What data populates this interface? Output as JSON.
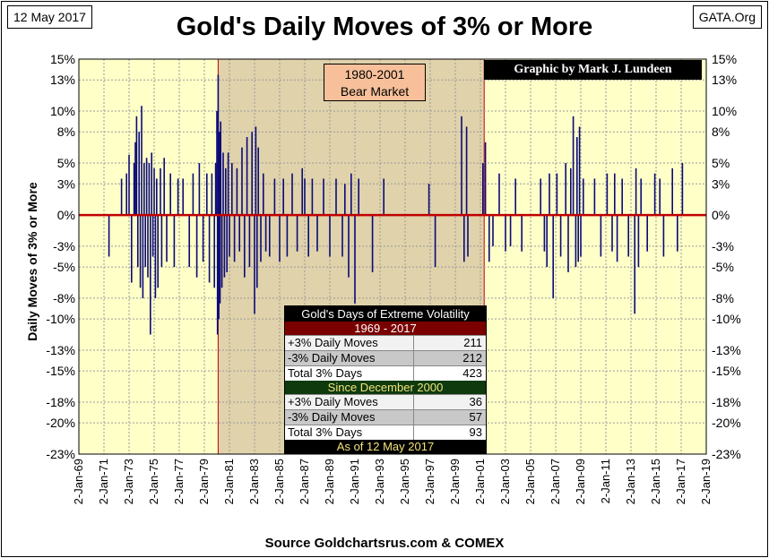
{
  "header": {
    "date": "12 May 2017",
    "brand": "GATA.Org",
    "title": "Gold's Daily Moves of 3% or More",
    "source": "Source Goldchartsrus.com & COMEX"
  },
  "annotations": {
    "bear_market_line1": "1980-2001",
    "bear_market_line2": "Bear Market",
    "credit": "Graphic by Mark J. Lundeen"
  },
  "stats_table": {
    "title": "Gold's Days of Extreme Volatility",
    "period1": "1969 - 2017",
    "rows1": [
      {
        "label": "+3% Daily Moves",
        "value": "211"
      },
      {
        "label": "-3% Daily Moves",
        "value": "212"
      },
      {
        "label": "Total 3% Days",
        "value": "423"
      }
    ],
    "period2": "Since December 2000",
    "rows2": [
      {
        "label": "+3% Daily Moves",
        "value": "36"
      },
      {
        "label": "-3% Daily Moves",
        "value": "57"
      },
      {
        "label": "Total 3% Days",
        "value": "93"
      }
    ],
    "footer": "As of 12 May 2017"
  },
  "colors": {
    "plot_bg": "#ffffc8",
    "bear_shade": "#e0d2aa",
    "bar": "#0a0a78",
    "zero_line": "#c00000",
    "bear_border": "#c00000"
  },
  "chart_data": {
    "type": "bar",
    "title": "Gold's Daily Moves of 3% or More",
    "ylabel": "Daily Moves of 3% or More",
    "xlabel": "",
    "ylim": [
      -23,
      15
    ],
    "xlim": [
      1969,
      2019
    ],
    "y_ticks": [
      15,
      13,
      10,
      8,
      5,
      3,
      0,
      -3,
      -5,
      -8,
      -10,
      -13,
      -15,
      -18,
      -20,
      -23
    ],
    "y_tick_labels": [
      "15%",
      "13%",
      "10%",
      "8%",
      "5%",
      "3%",
      "0%",
      "-3%",
      "-5%",
      "-8%",
      "-10%",
      "-13%",
      "-15%",
      "-18%",
      "-20%",
      "-23%"
    ],
    "x_tick_labels": [
      "2-Jan-69",
      "2-Jan-71",
      "2-Jan-73",
      "2-Jan-75",
      "2-Jan-77",
      "2-Jan-79",
      "2-Jan-81",
      "2-Jan-83",
      "2-Jan-85",
      "2-Jan-87",
      "2-Jan-89",
      "2-Jan-91",
      "2-Jan-93",
      "2-Jan-95",
      "2-Jan-97",
      "2-Jan-99",
      "2-Jan-01",
      "2-Jan-03",
      "2-Jan-05",
      "2-Jan-07",
      "2-Jan-09",
      "2-Jan-11",
      "2-Jan-13",
      "2-Jan-15",
      "2-Jan-17",
      "2-Jan-19"
    ],
    "bear_market_range": [
      1980.1,
      2001.3
    ],
    "series": [
      {
        "name": "Daily moves >= 3%",
        "x": [
          1971.4,
          1972.4,
          1972.8,
          1973.0,
          1973.2,
          1973.4,
          1973.5,
          1973.6,
          1973.7,
          1973.8,
          1973.9,
          1974.0,
          1974.1,
          1974.2,
          1974.3,
          1974.4,
          1974.5,
          1974.6,
          1974.7,
          1974.8,
          1974.9,
          1975.0,
          1975.1,
          1975.2,
          1975.3,
          1975.5,
          1975.6,
          1975.8,
          1976.0,
          1976.3,
          1976.6,
          1976.9,
          1977.3,
          1977.8,
          1978.1,
          1978.4,
          1978.6,
          1978.9,
          1979.2,
          1979.4,
          1979.6,
          1979.8,
          1979.9,
          1980.0,
          1980.05,
          1980.1,
          1980.15,
          1980.2,
          1980.25,
          1980.3,
          1980.4,
          1980.5,
          1980.6,
          1980.7,
          1980.8,
          1980.9,
          1981.0,
          1981.2,
          1981.4,
          1981.6,
          1981.8,
          1982.0,
          1982.2,
          1982.4,
          1982.6,
          1982.8,
          1983.0,
          1983.1,
          1983.2,
          1983.3,
          1983.5,
          1983.7,
          1983.9,
          1984.2,
          1984.6,
          1985.0,
          1985.3,
          1985.6,
          1986.0,
          1986.4,
          1986.8,
          1987.0,
          1987.3,
          1987.6,
          1988.0,
          1988.5,
          1989.0,
          1989.5,
          1990.0,
          1990.2,
          1990.5,
          1990.7,
          1991.0,
          1991.3,
          1992.4,
          1993.3,
          1996.9,
          1997.4,
          1999.5,
          1999.7,
          1999.9,
          2000.0,
          2001.2,
          2001.4,
          2001.7,
          2002.0,
          2002.5,
          2003.0,
          2003.4,
          2003.8,
          2004.3,
          2005.8,
          2006.1,
          2006.3,
          2006.5,
          2006.8,
          2007.1,
          2007.4,
          2007.8,
          2008.0,
          2008.2,
          2008.4,
          2008.6,
          2008.7,
          2008.8,
          2008.9,
          2009.0,
          2009.2,
          2010.1,
          2010.6,
          2011.1,
          2011.5,
          2011.7,
          2011.9,
          2012.3,
          2012.8,
          2013.3,
          2013.4,
          2013.6,
          2013.8,
          2014.3,
          2014.9,
          2015.3,
          2015.6,
          2016.3,
          2016.7,
          2017.1
        ],
        "values": [
          -4,
          3.5,
          4,
          5.8,
          -6.5,
          5,
          7,
          9.5,
          -5,
          8,
          -7,
          10.5,
          -8,
          5,
          -5,
          5.5,
          -6,
          5,
          -11.5,
          6,
          -4,
          4.5,
          -8,
          3.5,
          -7,
          4.5,
          -5,
          5.5,
          -4.5,
          4,
          -5,
          3.5,
          3.5,
          -5,
          4,
          -6,
          5,
          -4.5,
          4,
          -6.5,
          4,
          -7,
          5,
          10,
          -11.5,
          13.5,
          -10,
          8,
          -8.5,
          9,
          -7,
          6,
          -6,
          4.5,
          -5.5,
          6,
          -4,
          5,
          -4.5,
          4.5,
          -3.5,
          6.5,
          -6,
          7.5,
          -5,
          8,
          -9.5,
          8.5,
          -7,
          6.5,
          -4.5,
          4,
          -3.5,
          -4,
          3.5,
          -4.5,
          3.5,
          -4,
          4,
          -3.5,
          4.5,
          3.5,
          -4,
          3.5,
          -3.5,
          3.5,
          -4,
          3.5,
          -4,
          3,
          -6,
          4,
          -8.5,
          3.5,
          -5.5,
          3.5,
          3,
          -5,
          9.5,
          -4.5,
          8.5,
          -4,
          5,
          7,
          -4.5,
          -3,
          4,
          -3.5,
          -3,
          3.5,
          -3.5,
          3.5,
          -3.5,
          -5,
          4,
          -8,
          4,
          -4,
          5,
          -5.5,
          4.5,
          9.5,
          -5,
          7.5,
          -4.5,
          8.5,
          -4,
          3.5,
          3.5,
          -4,
          4,
          -3.5,
          4,
          -4.5,
          3.5,
          -4,
          -9.5,
          4.5,
          -5,
          3.5,
          -3.5,
          4,
          3.5,
          -4,
          4.5,
          -3.5,
          5
        ]
      }
    ]
  }
}
